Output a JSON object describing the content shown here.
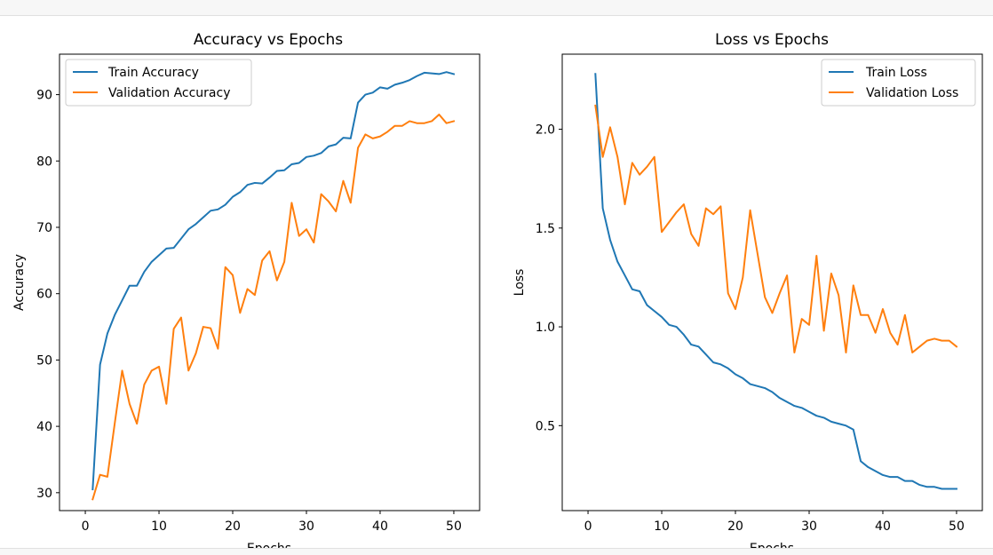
{
  "chart_data": [
    {
      "type": "line",
      "title": "Accuracy vs Epochs",
      "xlabel": "Epochs",
      "ylabel": "Accuracy",
      "xlim": [
        -3.5,
        53.5
      ],
      "ylim": [
        27.3,
        96.1
      ],
      "xticks": [
        0,
        10,
        20,
        30,
        40,
        50
      ],
      "yticks": [
        30,
        40,
        50,
        60,
        70,
        80,
        90
      ],
      "legend_position": "upper-left",
      "x": [
        1,
        2,
        3,
        4,
        5,
        6,
        7,
        8,
        9,
        10,
        11,
        12,
        13,
        14,
        15,
        16,
        17,
        18,
        19,
        20,
        21,
        22,
        23,
        24,
        25,
        26,
        27,
        28,
        29,
        30,
        31,
        32,
        33,
        34,
        35,
        36,
        37,
        38,
        39,
        40,
        41,
        42,
        43,
        44,
        45,
        46,
        47,
        48,
        49,
        50
      ],
      "series": [
        {
          "name": "Train Accuracy",
          "color": "#1f77b4",
          "values": [
            30.5,
            49.3,
            54.0,
            56.8,
            59.0,
            61.2,
            61.2,
            63.3,
            64.8,
            65.8,
            66.8,
            66.9,
            68.3,
            69.7,
            70.5,
            71.5,
            72.5,
            72.7,
            73.4,
            74.6,
            75.3,
            76.4,
            76.7,
            76.6,
            77.5,
            78.5,
            78.6,
            79.5,
            79.7,
            80.6,
            80.8,
            81.2,
            82.2,
            82.5,
            83.5,
            83.4,
            88.8,
            90.0,
            90.3,
            91.1,
            90.9,
            91.5,
            91.8,
            92.2,
            92.8,
            93.3,
            93.2,
            93.1,
            93.4,
            93.1
          ]
        },
        {
          "name": "Validation Accuracy",
          "color": "#ff7f0e",
          "values": [
            29.0,
            32.7,
            32.4,
            40.5,
            48.4,
            43.4,
            40.4,
            46.3,
            48.4,
            49.0,
            43.4,
            54.7,
            56.4,
            48.4,
            51.0,
            55.0,
            54.8,
            51.7,
            64.0,
            62.8,
            57.1,
            60.7,
            59.8,
            65.0,
            66.4,
            62.0,
            64.8,
            73.7,
            68.7,
            69.7,
            67.7,
            75.0,
            73.9,
            72.4,
            77.0,
            73.7,
            82.0,
            84.0,
            83.4,
            83.7,
            84.4,
            85.3,
            85.3,
            86.0,
            85.7,
            85.7,
            86.0,
            87.0,
            85.7,
            86.0
          ]
        }
      ]
    },
    {
      "type": "line",
      "title": "Loss vs Epochs",
      "xlabel": "Epochs",
      "ylabel": "Loss",
      "xlim": [
        -3.5,
        53.5
      ],
      "ylim": [
        0.07,
        2.38
      ],
      "xticks": [
        0,
        10,
        20,
        30,
        40,
        50
      ],
      "yticks": [
        0.5,
        1.0,
        1.5,
        2.0
      ],
      "legend_position": "upper-right",
      "x": [
        1,
        2,
        3,
        4,
        5,
        6,
        7,
        8,
        9,
        10,
        11,
        12,
        13,
        14,
        15,
        16,
        17,
        18,
        19,
        20,
        21,
        22,
        23,
        24,
        25,
        26,
        27,
        28,
        29,
        30,
        31,
        32,
        33,
        34,
        35,
        36,
        37,
        38,
        39,
        40,
        41,
        42,
        43,
        44,
        45,
        46,
        47,
        48,
        49,
        50
      ],
      "series": [
        {
          "name": "Train Loss",
          "color": "#1f77b4",
          "values": [
            2.28,
            1.6,
            1.44,
            1.33,
            1.26,
            1.19,
            1.18,
            1.11,
            1.08,
            1.05,
            1.01,
            1.0,
            0.96,
            0.91,
            0.9,
            0.86,
            0.82,
            0.81,
            0.79,
            0.76,
            0.74,
            0.71,
            0.7,
            0.69,
            0.67,
            0.64,
            0.62,
            0.6,
            0.59,
            0.57,
            0.55,
            0.54,
            0.52,
            0.51,
            0.5,
            0.48,
            0.32,
            0.29,
            0.27,
            0.25,
            0.24,
            0.24,
            0.22,
            0.22,
            0.2,
            0.19,
            0.19,
            0.18,
            0.18,
            0.18
          ]
        },
        {
          "name": "Validation Loss",
          "color": "#ff7f0e",
          "values": [
            2.12,
            1.86,
            2.01,
            1.86,
            1.62,
            1.83,
            1.77,
            1.81,
            1.86,
            1.48,
            1.53,
            1.58,
            1.62,
            1.47,
            1.41,
            1.6,
            1.57,
            1.61,
            1.17,
            1.09,
            1.25,
            1.59,
            1.37,
            1.15,
            1.07,
            1.17,
            1.26,
            0.87,
            1.04,
            1.01,
            1.36,
            0.98,
            1.27,
            1.16,
            0.87,
            1.21,
            1.06,
            1.06,
            0.97,
            1.09,
            0.97,
            0.91,
            1.06,
            0.87,
            0.9,
            0.93,
            0.94,
            0.93,
            0.93,
            0.9
          ]
        }
      ]
    }
  ]
}
